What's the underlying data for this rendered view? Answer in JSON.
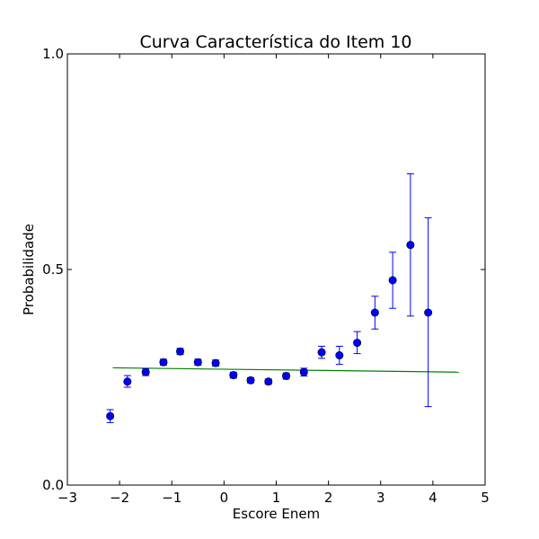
{
  "chart_data": {
    "type": "scatter",
    "title": "Curva Característica do Item 10",
    "xlabel": "Escore Enem",
    "ylabel": "Probabilidade",
    "xlim": [
      -3,
      5
    ],
    "ylim": [
      0.0,
      1.0
    ],
    "xticks": [
      {
        "value": -3,
        "label": "−3"
      },
      {
        "value": -2,
        "label": "−2"
      },
      {
        "value": -1,
        "label": "−1"
      },
      {
        "value": 0,
        "label": "0"
      },
      {
        "value": 1,
        "label": "1"
      },
      {
        "value": 2,
        "label": "2"
      },
      {
        "value": 3,
        "label": "3"
      },
      {
        "value": 4,
        "label": "4"
      },
      {
        "value": 5,
        "label": "5"
      }
    ],
    "yticks": [
      {
        "value": 0.0,
        "label": "0.0"
      },
      {
        "value": 0.5,
        "label": "0.5"
      },
      {
        "value": 1.0,
        "label": "1.0"
      }
    ],
    "grid": false,
    "colors": {
      "points": "#0000ff",
      "fit_line": "#008000"
    },
    "points": {
      "x": [
        -2.18,
        -1.85,
        -1.5,
        -1.16,
        -0.84,
        -0.5,
        -0.16,
        0.18,
        0.51,
        0.85,
        1.19,
        1.53,
        1.87,
        2.21,
        2.55,
        2.89,
        3.23,
        3.57,
        3.91
      ],
      "y": [
        0.16,
        0.24,
        0.262,
        0.285,
        0.31,
        0.285,
        0.283,
        0.255,
        0.243,
        0.24,
        0.253,
        0.262,
        0.308,
        0.301,
        0.33,
        0.4,
        0.475,
        0.557,
        0.4
      ],
      "err_low": [
        0.145,
        0.227,
        0.254,
        0.278,
        0.303,
        0.278,
        0.276,
        0.248,
        0.237,
        0.234,
        0.246,
        0.253,
        0.294,
        0.28,
        0.305,
        0.362,
        0.41,
        0.392,
        0.182
      ],
      "err_high": [
        0.175,
        0.254,
        0.27,
        0.292,
        0.317,
        0.292,
        0.29,
        0.262,
        0.249,
        0.246,
        0.26,
        0.271,
        0.322,
        0.322,
        0.356,
        0.438,
        0.54,
        0.722,
        0.62
      ]
    },
    "fit_line": {
      "x": [
        -2.13,
        4.5
      ],
      "y": [
        0.272,
        0.262
      ]
    }
  }
}
